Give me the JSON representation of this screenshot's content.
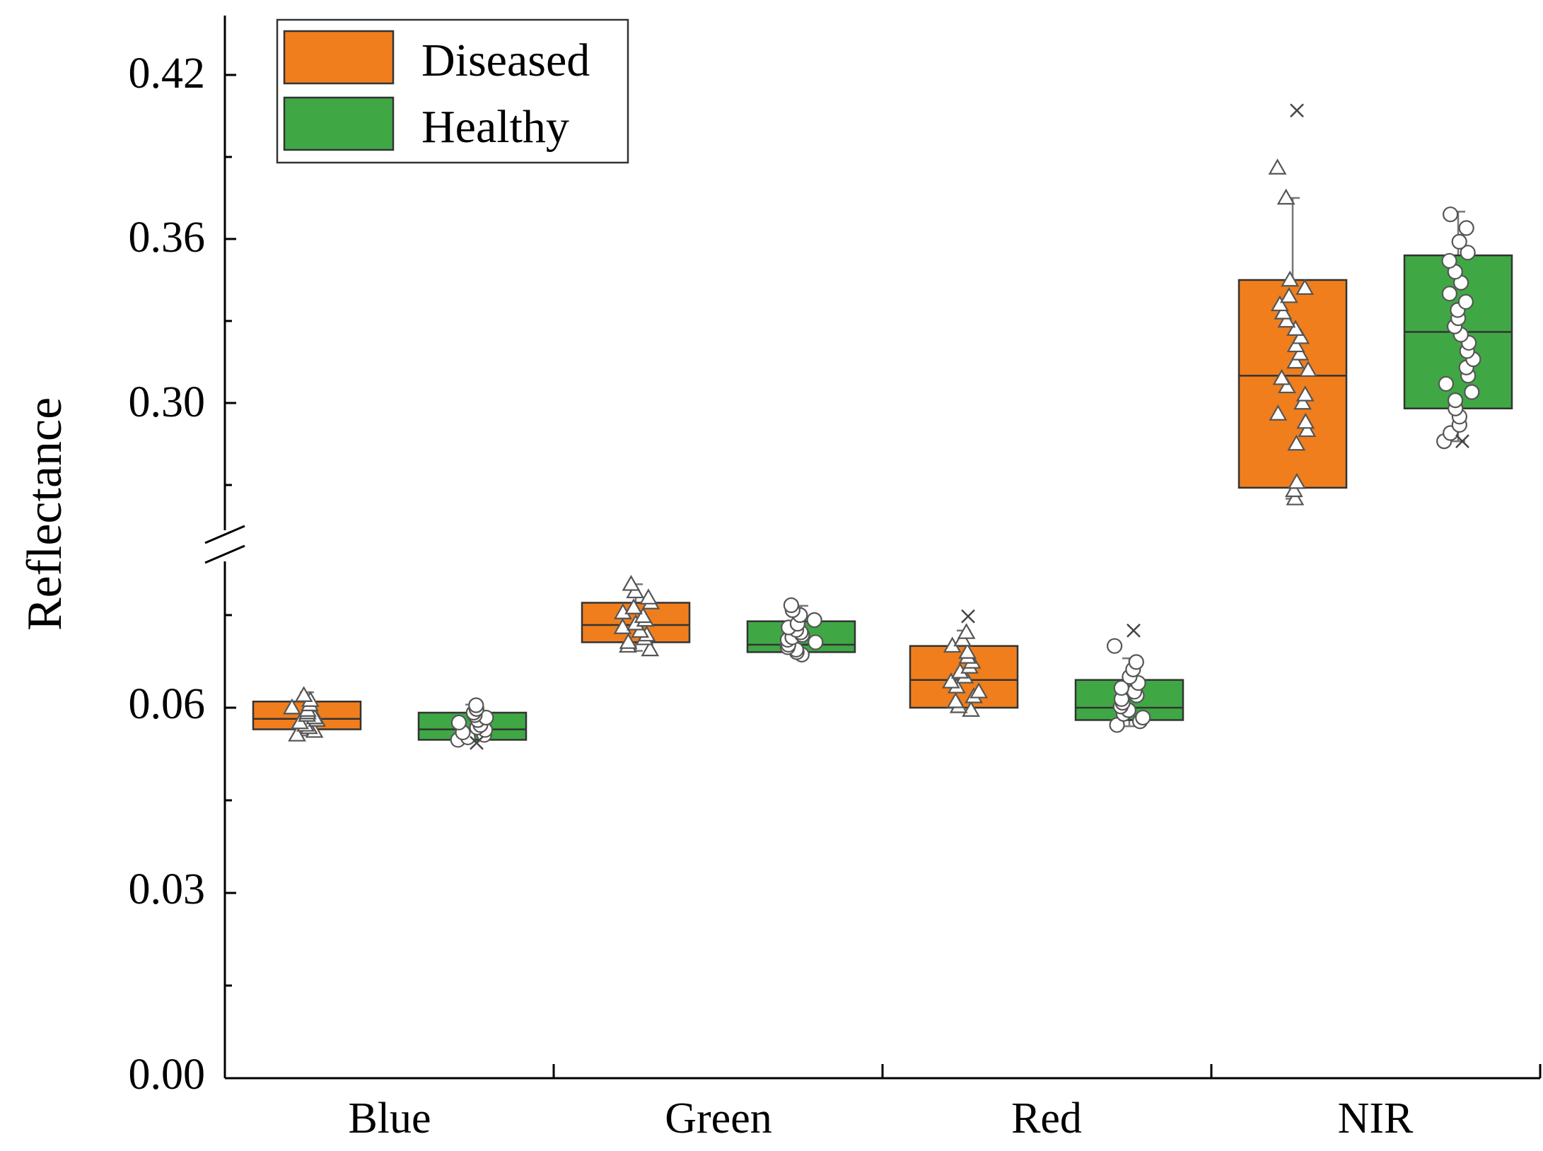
{
  "chart_data": {
    "type": "box",
    "title": "",
    "xlabel": "",
    "ylabel": "Reflectance",
    "categories": [
      "Blue",
      "Green",
      "Red",
      "NIR"
    ],
    "y_axis": {
      "lower_segment": [
        0.0,
        0.084
      ],
      "upper_segment": [
        0.27,
        0.435
      ],
      "broken": true,
      "lower_ticks": [
        "0.00",
        "0.03",
        "0.06"
      ],
      "upper_ticks": [
        "0.30",
        "0.36",
        "0.42"
      ]
    },
    "legend": {
      "position": "top-left"
    },
    "colors": {
      "Diseased": "#f07e1d",
      "Healthy": "#3fa845"
    },
    "series": [
      {
        "name": "Diseased",
        "marker": "triangle",
        "boxes": [
          {
            "category": "Blue",
            "whisker_low": 0.0555,
            "q1": 0.0565,
            "median": 0.0582,
            "q3": 0.061,
            "whisker_high": 0.0625,
            "points": [
              0.0556,
              0.0562,
              0.0568,
              0.0572,
              0.0576,
              0.058,
              0.0584,
              0.0588,
              0.0592,
              0.0596,
              0.06,
              0.0605,
              0.0612,
              0.062
            ]
          },
          {
            "category": "Green",
            "whisker_low": 0.0692,
            "q1": 0.0706,
            "median": 0.0734,
            "q3": 0.077,
            "whisker_high": 0.08,
            "points": [
              0.0694,
              0.07,
              0.0706,
              0.0712,
              0.0718,
              0.0724,
              0.073,
              0.0736,
              0.0742,
              0.0748,
              0.0754,
              0.0762,
              0.077,
              0.0778,
              0.0788,
              0.08
            ]
          },
          {
            "category": "Red",
            "whisker_low": 0.0595,
            "q1": 0.06,
            "median": 0.0645,
            "q3": 0.07,
            "whisker_high": 0.0725,
            "points": [
              0.0596,
              0.0602,
              0.061,
              0.0618,
              0.0626,
              0.0634,
              0.0642,
              0.065,
              0.0658,
              0.0666,
              0.0674,
              0.0682,
              0.069,
              0.07,
              0.071,
              0.0722
            ],
            "outliers": [
              0.0748
            ]
          },
          {
            "category": "NIR",
            "whisker_low": 0.265,
            "q1": 0.269,
            "median": 0.31,
            "q3": 0.345,
            "whisker_high": 0.375,
            "points": [
              0.265,
              0.268,
              0.271,
              0.285,
              0.29,
              0.293,
              0.296,
              0.3,
              0.303,
              0.306,
              0.309,
              0.312,
              0.315,
              0.318,
              0.321,
              0.324,
              0.327,
              0.33,
              0.333,
              0.336,
              0.339,
              0.342,
              0.345,
              0.375,
              0.386
            ],
            "outliers": [
              0.407
            ]
          }
        ]
      },
      {
        "name": "Healthy",
        "marker": "circle",
        "boxes": [
          {
            "category": "Blue",
            "whisker_low": 0.0545,
            "q1": 0.0548,
            "median": 0.0565,
            "q3": 0.0592,
            "whisker_high": 0.0605,
            "points": [
              0.0548,
              0.0552,
              0.0556,
              0.056,
              0.0564,
              0.0568,
              0.0572,
              0.0576,
              0.058,
              0.0584,
              0.0588,
              0.0592,
              0.0598,
              0.0604
            ],
            "outliers": [
              0.0543
            ]
          },
          {
            "category": "Green",
            "whisker_low": 0.0685,
            "q1": 0.069,
            "median": 0.0702,
            "q3": 0.074,
            "whisker_high": 0.0765,
            "points": [
              0.0686,
              0.069,
              0.0694,
              0.0698,
              0.0702,
              0.0706,
              0.071,
              0.0714,
              0.0718,
              0.0722,
              0.0726,
              0.073,
              0.0736,
              0.0742,
              0.075,
              0.0758,
              0.0766
            ]
          },
          {
            "category": "Red",
            "whisker_low": 0.057,
            "q1": 0.058,
            "median": 0.06,
            "q3": 0.0645,
            "whisker_high": 0.068,
            "points": [
              0.0572,
              0.0578,
              0.0584,
              0.059,
              0.0596,
              0.0602,
              0.0608,
              0.0614,
              0.062,
              0.0626,
              0.0632,
              0.064,
              0.065,
              0.0662,
              0.0674,
              0.07
            ],
            "outliers": [
              0.0725
            ]
          },
          {
            "category": "NIR",
            "whisker_low": 0.286,
            "q1": 0.298,
            "median": 0.326,
            "q3": 0.354,
            "whisker_high": 0.37,
            "points": [
              0.286,
              0.289,
              0.292,
              0.295,
              0.298,
              0.301,
              0.304,
              0.307,
              0.31,
              0.313,
              0.316,
              0.319,
              0.322,
              0.325,
              0.328,
              0.331,
              0.334,
              0.337,
              0.34,
              0.344,
              0.348,
              0.352,
              0.355,
              0.359,
              0.364,
              0.369
            ],
            "outliers": [
              0.286
            ]
          }
        ]
      }
    ]
  }
}
